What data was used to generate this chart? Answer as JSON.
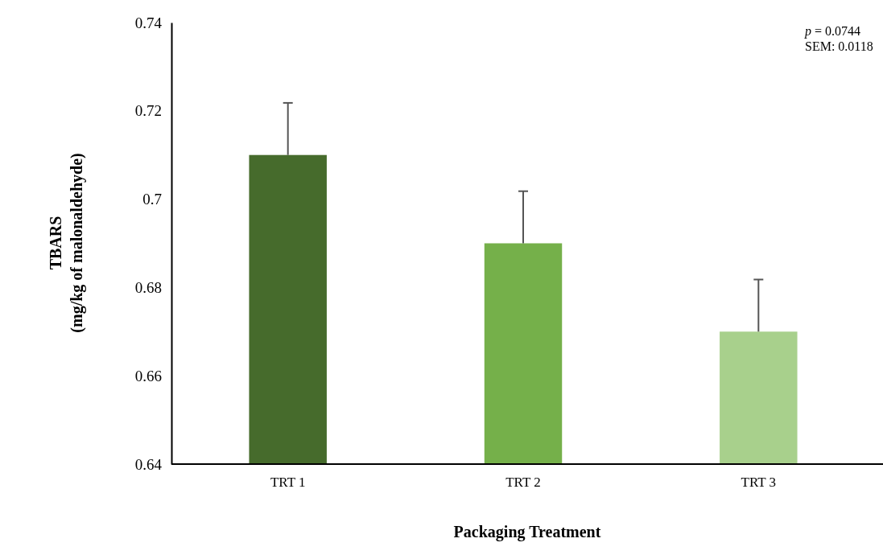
{
  "chart_data": {
    "type": "bar",
    "xlabel": "Packaging Treatment",
    "ylabel": "TBARS\n(mg/kg of malonaldehyde)",
    "categories": [
      "TRT 1",
      "TRT 2",
      "TRT 3"
    ],
    "values": [
      0.71,
      0.69,
      0.67
    ],
    "colors": [
      "#466b2c",
      "#75b04a",
      "#a8d08c"
    ],
    "errors": [
      [
        0.71,
        0.7218
      ],
      [
        0.69,
        0.7018
      ],
      [
        0.67,
        0.6818
      ]
    ],
    "ylim": [
      0.64,
      0.74
    ],
    "yticks": [
      0.64,
      0.66,
      0.68,
      0.7,
      0.72,
      0.74
    ],
    "annotations": [
      "p = 0.0744",
      "SEM: 0.0118"
    ],
    "grid": false
  }
}
